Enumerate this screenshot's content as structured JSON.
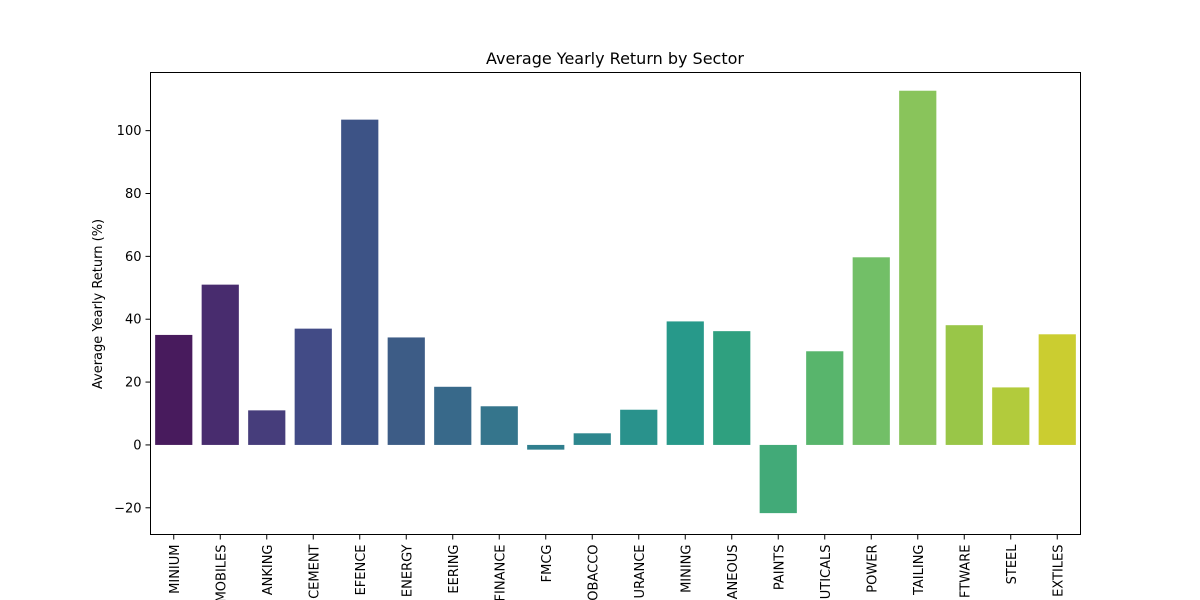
{
  "chart_data": {
    "type": "bar",
    "title": "Average Yearly Return by Sector",
    "xlabel": "",
    "ylabel": "Average Yearly Return (%)",
    "categories": [
      "MINIUM",
      "MOBILES",
      "ANKING",
      "CEMENT",
      "EFENCE",
      "ENERGY",
      "EERING",
      "FINANCE",
      "FMCG",
      "OBACCO",
      "URANCE",
      "MINING",
      "ANEOUS",
      "PAINTS",
      "UTICALS",
      "POWER",
      "TAILING",
      "FTWARE",
      "STEEL",
      "EXTILES"
    ],
    "values": [
      35,
      51,
      11,
      37,
      103.5,
      34.2,
      18.5,
      12.3,
      -1.5,
      3.7,
      11.2,
      39.3,
      36.2,
      -21.7,
      29.8,
      59.7,
      112.7,
      38.1,
      18.3,
      35.2
    ],
    "colors": [
      "#481b5d",
      "#482c6e",
      "#463d7b",
      "#424b86",
      "#3d5386",
      "#3d5c86",
      "#38698a",
      "#35758c",
      "#307f8e",
      "#2d878e",
      "#29928c",
      "#27998a",
      "#2fa07f",
      "#42aa78",
      "#58b56c",
      "#72bf67",
      "#89c45b",
      "#99c648",
      "#b2cb3c",
      "#cbcd30"
    ],
    "ylim": [
      -28.5,
      118.5
    ],
    "yticks": [
      -20,
      0,
      20,
      40,
      60,
      80,
      100
    ],
    "grid": false,
    "legend": "none"
  }
}
